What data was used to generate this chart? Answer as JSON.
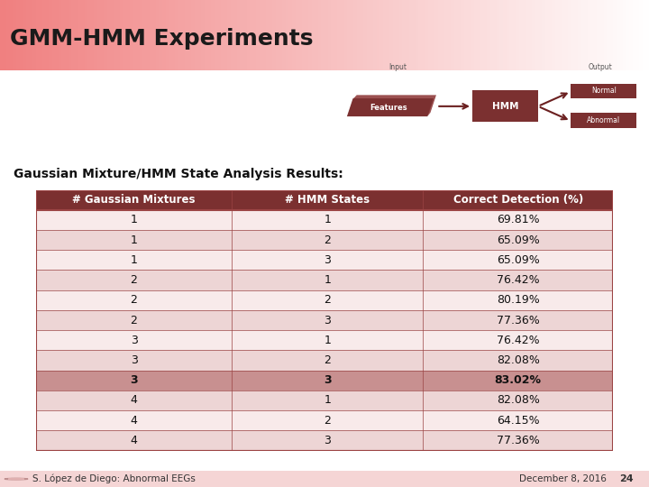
{
  "title": "GMM-HMM Experiments",
  "subtitle": "Gaussian Mixture/HMM State Analysis Results:",
  "bg_color": "#FFFFFF",
  "title_gradient_left": "#F08080",
  "title_gradient_right": "#FFFFFF",
  "header_row": [
    "# Gaussian Mixtures",
    "# HMM States",
    "Correct Detection (%)"
  ],
  "table_data": [
    [
      "1",
      "1",
      "69.81%"
    ],
    [
      "1",
      "2",
      "65.09%"
    ],
    [
      "1",
      "3",
      "65.09%"
    ],
    [
      "2",
      "1",
      "76.42%"
    ],
    [
      "2",
      "2",
      "80.19%"
    ],
    [
      "2",
      "3",
      "77.36%"
    ],
    [
      "3",
      "1",
      "76.42%"
    ],
    [
      "3",
      "2",
      "82.08%"
    ],
    [
      "3",
      "3",
      "83.02%"
    ],
    [
      "4",
      "1",
      "82.08%"
    ],
    [
      "4",
      "2",
      "64.15%"
    ],
    [
      "4",
      "3",
      "77.36%"
    ]
  ],
  "bold_row": 8,
  "header_bg": "#7B3030",
  "header_fg": "#FFFFFF",
  "row_odd_bg": "#F8EAEA",
  "row_even_bg": "#EDD5D5",
  "bold_row_bg": "#C89090",
  "table_border_color": "#9B4444",
  "footer_left": "S. López de Diego: Abnormal EEGs",
  "footer_right": "December 8, 2016",
  "page_number": "24",
  "footer_bg": "#F5D5D5",
  "feat_color": "#7B3030",
  "feat_shadow_color": "#9B5050",
  "hmm_color": "#7B3030",
  "out_color": "#7B3030"
}
